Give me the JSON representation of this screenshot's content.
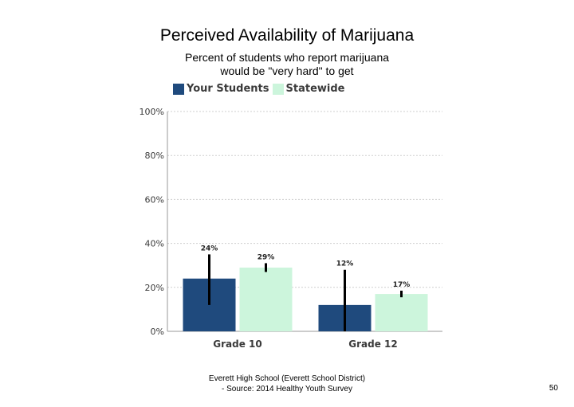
{
  "chart_data": {
    "type": "bar",
    "title": "Perceived Availability of Marijuana",
    "subtitle": "Percent of students who report marijuana would be \"very hard\" to get",
    "categories": [
      "Grade 10",
      "Grade 12"
    ],
    "series": [
      {
        "name": "Your Students",
        "values": [
          24,
          12
        ],
        "labels": [
          "24%",
          "12%"
        ],
        "error_low": [
          12,
          0
        ],
        "error_high": [
          35,
          28
        ],
        "color": "#1f4a7d"
      },
      {
        "name": "Statewide",
        "values": [
          29,
          17
        ],
        "labels": [
          "29%",
          "17%"
        ],
        "error_low": [
          27,
          15.5
        ],
        "error_high": [
          31,
          18.5
        ],
        "color": "#ccf5dc"
      }
    ],
    "ylim": [
      0,
      100
    ],
    "yticks": [
      0,
      20,
      40,
      60,
      80,
      100
    ],
    "ytick_labels": [
      "0%",
      "20%",
      "40%",
      "60%",
      "80%",
      "100%"
    ],
    "grid": true,
    "legend_position": "top-left"
  },
  "footer": {
    "line1": "Everett High School (Everett School District)",
    "line2": "- Source: 2014 Healthy Youth Survey"
  },
  "page_number": "50"
}
